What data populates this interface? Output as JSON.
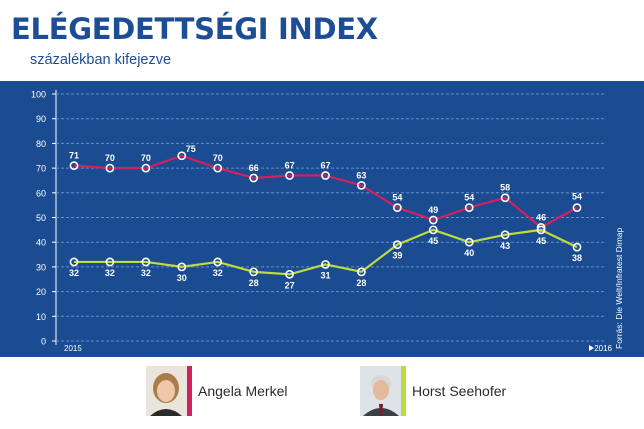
{
  "header": {
    "title": "ELÉGEDETTSÉGI INDEX",
    "subtitle": "százalékban kifejezve"
  },
  "source": "Forrás: Die Welt/Infratest Dimap",
  "colors": {
    "panel": "#1b4b91",
    "merkel": "#d4205f",
    "seehofer": "#bedb3f",
    "grid": "#6a8fc8",
    "text": "#ffffff"
  },
  "legend": [
    {
      "name": "Angela Merkel",
      "color": "#d4205f",
      "icon": "portrait-woman-icon"
    },
    {
      "name": "Horst Seehofer",
      "color": "#bedb3f",
      "icon": "portrait-man-icon"
    }
  ],
  "chart_data": {
    "type": "line",
    "x_start_label": "2015",
    "x_end_label": "2016",
    "ylim": [
      0,
      100
    ],
    "y_ticks": [
      0,
      10,
      20,
      30,
      40,
      50,
      60,
      70,
      80,
      90,
      100
    ],
    "grid": true,
    "series": [
      {
        "name": "Angela Merkel",
        "color": "#d4205f",
        "values": [
          71,
          70,
          70,
          75,
          70,
          66,
          67,
          67,
          63,
          54,
          49,
          54,
          58,
          46,
          54
        ]
      },
      {
        "name": "Horst Seehofer",
        "color": "#bedb3f",
        "values": [
          32,
          32,
          32,
          30,
          32,
          28,
          27,
          31,
          28,
          39,
          45,
          40,
          43,
          45,
          38
        ]
      }
    ]
  }
}
